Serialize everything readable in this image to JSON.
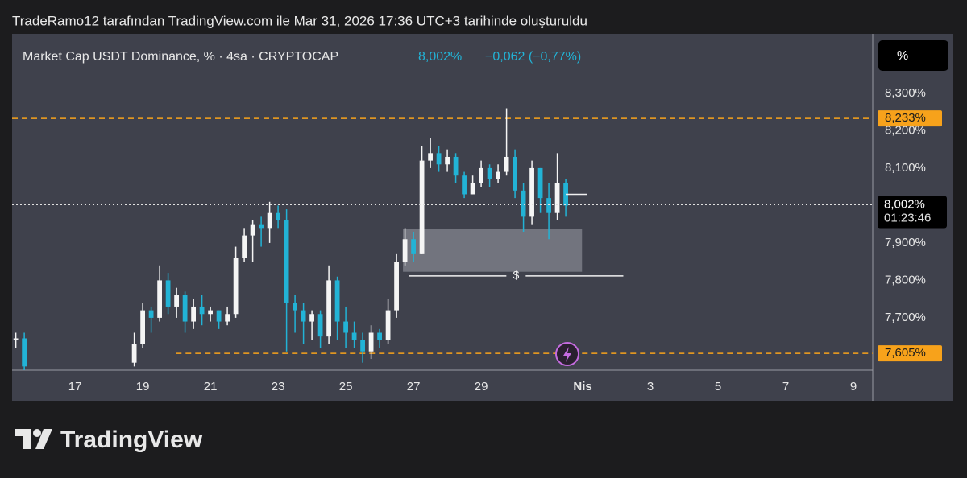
{
  "header": "TradeRamo12 tarafından TradingView.com ile Mar 31, 2026 17:36 UTC+3 tarihinde oluşturuldu",
  "brand": "TradingView",
  "chart_data": {
    "type": "candlestick",
    "title": "Market Cap USDT Dominance, % · 4sa · CRYPTOCAP",
    "unit_button": "%",
    "last_price": {
      "value": 8.002,
      "label": "8,002%"
    },
    "change": "−0,062 (−0,77%)",
    "countdown": "01:23:46",
    "up_color": "#f5f5f5",
    "down_color": "#22b3d6",
    "x": [
      15.25,
      15.5,
      18.75,
      19.0,
      19.25,
      19.5,
      19.75,
      20.0,
      20.25,
      20.5,
      20.75,
      21.0,
      21.25,
      21.5,
      21.75,
      22.0,
      22.25,
      22.5,
      22.75,
      23.0,
      23.25,
      23.5,
      23.75,
      24.0,
      24.25,
      24.5,
      24.75,
      25.0,
      25.25,
      25.5,
      25.75,
      26.0,
      26.25,
      26.5,
      26.75,
      27.0,
      27.25,
      27.5,
      27.75,
      28.0,
      28.25,
      28.5,
      28.75,
      29.0,
      29.25,
      29.5,
      29.75,
      30.0,
      30.25,
      30.5,
      30.75,
      31.0,
      31.25,
      31.5
    ],
    "open": [
      7.64,
      7.645,
      7.58,
      7.63,
      7.72,
      7.7,
      7.8,
      7.73,
      7.76,
      7.69,
      7.73,
      7.71,
      7.72,
      7.69,
      7.71,
      7.86,
      7.92,
      7.95,
      7.94,
      7.98,
      7.96,
      7.74,
      7.72,
      7.69,
      7.71,
      7.65,
      7.8,
      7.69,
      7.66,
      7.64,
      7.61,
      7.66,
      7.64,
      7.72,
      7.85,
      7.91,
      7.87,
      8.12,
      8.14,
      8.11,
      8.13,
      8.08,
      8.03,
      8.06,
      8.1,
      8.07,
      8.09,
      8.13,
      8.04,
      7.97,
      8.1,
      8.02,
      7.98,
      8.06
    ],
    "high": [
      7.66,
      7.66,
      7.66,
      7.74,
      7.73,
      7.84,
      7.82,
      7.78,
      7.77,
      7.75,
      7.76,
      7.73,
      7.72,
      7.73,
      7.89,
      7.94,
      7.96,
      7.97,
      8.01,
      8.0,
      7.99,
      7.76,
      7.74,
      7.72,
      7.72,
      7.84,
      7.81,
      7.73,
      7.69,
      7.66,
      7.68,
      7.67,
      7.75,
      7.87,
      7.94,
      7.93,
      8.16,
      8.18,
      8.16,
      8.15,
      8.14,
      8.09,
      8.08,
      8.12,
      8.11,
      8.11,
      8.26,
      8.15,
      8.06,
      8.12,
      8.1,
      8.06,
      8.14,
      8.07
    ],
    "low": [
      7.62,
      7.55,
      7.57,
      7.62,
      7.66,
      7.69,
      7.71,
      7.7,
      7.66,
      7.67,
      7.68,
      7.69,
      7.67,
      7.68,
      7.7,
      7.85,
      7.85,
      7.89,
      7.9,
      7.94,
      7.61,
      7.66,
      7.63,
      7.64,
      7.62,
      7.63,
      7.64,
      7.62,
      7.62,
      7.58,
      7.59,
      7.62,
      7.63,
      7.7,
      7.84,
      7.85,
      7.87,
      8.1,
      8.09,
      8.09,
      8.06,
      8.02,
      8.03,
      8.05,
      8.05,
      8.06,
      8.08,
      8.02,
      7.93,
      7.95,
      7.98,
      7.91,
      7.96,
      7.97
    ],
    "close": [
      7.645,
      7.57,
      7.63,
      7.72,
      7.7,
      7.8,
      7.73,
      7.76,
      7.69,
      7.73,
      7.71,
      7.72,
      7.69,
      7.71,
      7.86,
      7.92,
      7.95,
      7.94,
      7.98,
      7.96,
      7.74,
      7.72,
      7.69,
      7.71,
      7.65,
      7.8,
      7.69,
      7.66,
      7.64,
      7.61,
      7.66,
      7.64,
      7.72,
      7.85,
      7.91,
      7.87,
      8.12,
      8.14,
      8.11,
      8.13,
      8.08,
      8.03,
      8.06,
      8.1,
      8.07,
      8.09,
      8.13,
      8.04,
      7.97,
      8.1,
      8.02,
      7.98,
      8.06,
      8.0
    ],
    "xlim": [
      15.14,
      40.57
    ],
    "ylim": [
      7.56,
      8.459
    ],
    "xticks": [
      17,
      19,
      21,
      23,
      25,
      27,
      29,
      {
        "value": 32,
        "label": "Nis"
      },
      {
        "value": 34,
        "label": "3"
      },
      {
        "value": 36,
        "label": "5"
      },
      {
        "value": 38,
        "label": "7"
      },
      {
        "value": 40,
        "label": "9"
      }
    ],
    "yticks": [
      {
        "value": 8.3,
        "label": "8,300%"
      },
      {
        "value": 8.2,
        "label": "8,200%"
      },
      {
        "value": 8.1,
        "label": "8,100%"
      },
      {
        "value": 7.9,
        "label": "7,900%"
      },
      {
        "value": 7.8,
        "label": "7,800%"
      },
      {
        "value": 7.7,
        "label": "7,700%"
      }
    ],
    "hlines": [
      {
        "value": 8.233,
        "label": "8,233%",
        "x_start": 15.14,
        "color": "#f7a21b"
      },
      {
        "value": 7.605,
        "label": "7,605%",
        "x_start": 19.98,
        "color": "#f7a21b"
      }
    ],
    "box": {
      "x": [
        26.69,
        31.98
      ],
      "y": [
        7.823,
        7.937
      ]
    },
    "level": {
      "value": 7.812,
      "x": [
        26.86,
        33.2
      ],
      "label": "$"
    }
  }
}
